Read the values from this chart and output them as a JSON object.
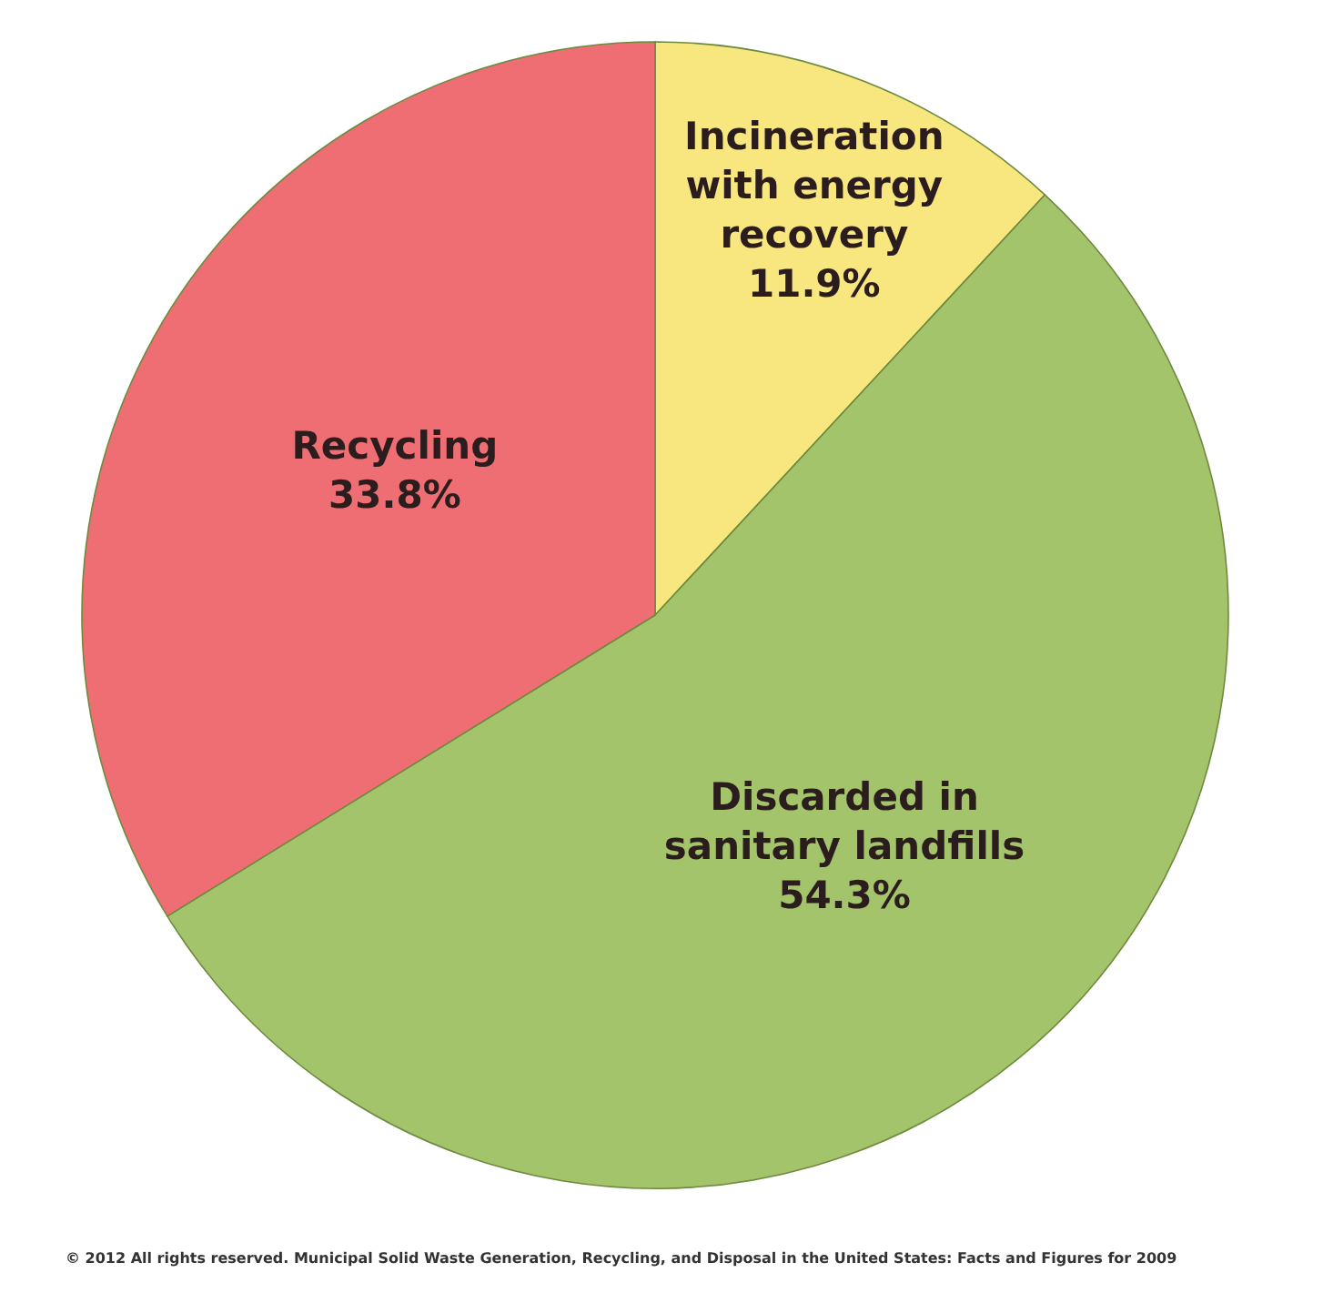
{
  "chart_data": {
    "type": "pie",
    "categories": [
      "Incineration with energy recovery",
      "Discarded in sanitary landfills",
      "Recycling"
    ],
    "values": [
      11.9,
      54.3,
      33.8
    ],
    "value_labels": [
      "11.9%",
      "54.3%",
      "33.8%"
    ],
    "colors": [
      "#f8e67f",
      "#a4c46b",
      "#ef6e73"
    ],
    "annotations": [
      "© 2012 All rights reserved. Municipal Solid Waste Generation, Recycling, and Disposal in the United States: Facts and Figures for 2009"
    ]
  }
}
